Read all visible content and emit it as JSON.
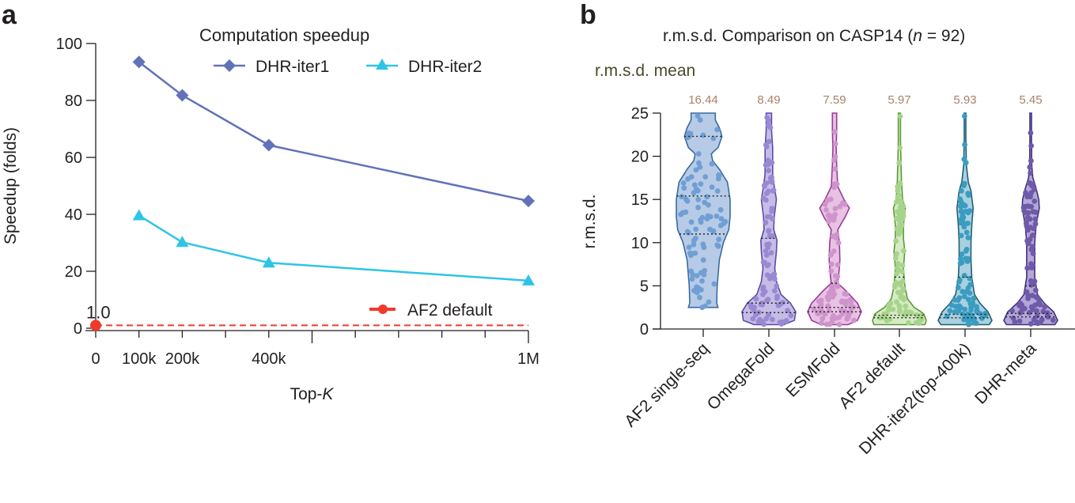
{
  "chart_data": [
    {
      "panel": "a",
      "type": "line",
      "title": "Computation speedup",
      "xlabel": "Top-K",
      "xlabel_parts": [
        "Top-",
        "K"
      ],
      "ylabel": "Speedup (folds)",
      "xlim": [
        0,
        1000000
      ],
      "ylim": [
        0,
        100
      ],
      "x_tick_values": [
        0,
        100000,
        200000,
        400000,
        1000000
      ],
      "x_tick_labels": [
        "0",
        "100k",
        "200k",
        "400k",
        "1M"
      ],
      "x_minor_ticks": [
        300000,
        500000,
        600000,
        700000,
        800000,
        900000
      ],
      "y_ticks": [
        0,
        20,
        40,
        60,
        80,
        100
      ],
      "y_tick_labels": [
        "0",
        "20",
        "40",
        "60",
        "80",
        "100"
      ],
      "grid": false,
      "legend_position": "top-right",
      "series": [
        {
          "name": "DHR-iter1",
          "color": "#6272b8",
          "marker": "diamond",
          "x": [
            100000,
            200000,
            400000,
            1000000
          ],
          "values": [
            93.5,
            81.8,
            64.3,
            44.7
          ]
        },
        {
          "name": "DHR-iter2",
          "color": "#2ec4e6",
          "marker": "triangle",
          "x": [
            100000,
            200000,
            400000,
            1000000
          ],
          "values": [
            39.6,
            30.2,
            23.0,
            16.7
          ]
        }
      ],
      "baseline": {
        "name": "AF2 default",
        "color": "#ef3b2c",
        "value": 1.0,
        "x": 0,
        "label": "1.0",
        "style": "dashed",
        "legend_position": "bottom-right"
      }
    },
    {
      "panel": "b",
      "type": "violin",
      "title": "r.m.s.d. Comparison on CASP14 (n = 92)",
      "title_parts": [
        "r.m.s.d. Comparison on CASP14 (",
        "n",
        " = 92)"
      ],
      "subtitle": "r.m.s.d. mean",
      "ylabel": "r.m.s.d.",
      "ylim": [
        0,
        25
      ],
      "y_ticks": [
        0,
        5,
        10,
        15,
        20,
        25
      ],
      "y_tick_labels": [
        "0",
        "5",
        "10",
        "15",
        "20",
        "25"
      ],
      "grid": false,
      "categories": [
        "AF2 single-seq",
        "OmegaFold",
        "ESMFold",
        "AF2 default",
        "DHR-iter2(top-400k)",
        "DHR-meta"
      ],
      "mean_labels": [
        "16.44",
        "8.49",
        "7.59",
        "5.97",
        "5.93",
        "5.45"
      ],
      "means": [
        16.44,
        8.49,
        7.59,
        5.97,
        5.93,
        5.45
      ],
      "mean_label_color": "#a8826a",
      "series": [
        {
          "name": "AF2 single-seq",
          "fill": "#b7cbe6",
          "stroke": "#3a6aa0",
          "dot": "#6f9fd4",
          "min": 2.5,
          "max": 25,
          "quartiles": [
            11.0,
            15.4,
            22.3
          ],
          "density": [
            [
              2.5,
              0.55
            ],
            [
              3,
              0.5
            ],
            [
              5,
              0.52
            ],
            [
              8,
              0.6
            ],
            [
              10,
              0.75
            ],
            [
              11.5,
              0.95
            ],
            [
              13,
              1.0
            ],
            [
              15,
              1.0
            ],
            [
              17,
              0.9
            ],
            [
              18.5,
              0.6
            ],
            [
              19.5,
              0.35
            ],
            [
              20.3,
              0.3
            ],
            [
              21,
              0.55
            ],
            [
              22.3,
              0.7
            ],
            [
              23.3,
              0.6
            ],
            [
              24.2,
              0.45
            ],
            [
              25,
              0.45
            ]
          ]
        },
        {
          "name": "OmegaFold",
          "fill": "#c5bde6",
          "stroke": "#5b4ba6",
          "dot": "#9a89d2",
          "min": 0.5,
          "max": 25,
          "quartiles": [
            1.9,
            3.0,
            10.5
          ],
          "density": [
            [
              0.5,
              0.55
            ],
            [
              1,
              0.95
            ],
            [
              2,
              1.0
            ],
            [
              3,
              0.8
            ],
            [
              4,
              0.45
            ],
            [
              5.5,
              0.28
            ],
            [
              7,
              0.22
            ],
            [
              9,
              0.28
            ],
            [
              10.3,
              0.3
            ],
            [
              11.5,
              0.18
            ],
            [
              13,
              0.2
            ],
            [
              15,
              0.28
            ],
            [
              16.5,
              0.2
            ],
            [
              18,
              0.14
            ],
            [
              21,
              0.14
            ],
            [
              23,
              0.1
            ],
            [
              25,
              0.1
            ]
          ]
        },
        {
          "name": "ESMFold",
          "fill": "#e8c2e2",
          "stroke": "#9a3a9a",
          "dot": "#cf94cc",
          "min": 0.5,
          "max": 25,
          "quartiles": [
            2.0,
            2.5,
            5.3
          ],
          "density": [
            [
              0.5,
              0.5
            ],
            [
              1,
              0.85
            ],
            [
              2,
              1.0
            ],
            [
              3,
              0.85
            ],
            [
              4.5,
              0.4
            ],
            [
              5.3,
              0.12
            ],
            [
              6,
              0.15
            ],
            [
              8,
              0.2
            ],
            [
              10,
              0.18
            ],
            [
              11.5,
              0.12
            ],
            [
              13,
              0.4
            ],
            [
              14,
              0.55
            ],
            [
              15,
              0.35
            ],
            [
              16.5,
              0.12
            ],
            [
              19,
              0.08
            ],
            [
              21,
              0.06
            ],
            [
              23,
              0.08
            ],
            [
              25,
              0.08
            ]
          ]
        },
        {
          "name": "AF2 default",
          "fill": "#d6ebc4",
          "stroke": "#5a9a3a",
          "dot": "#a7d48a",
          "min": 0.5,
          "max": 25,
          "quartiles": [
            1.3,
            1.6,
            6.0
          ],
          "density": [
            [
              0.5,
              0.95
            ],
            [
              1,
              1.0
            ],
            [
              1.8,
              0.9
            ],
            [
              2.5,
              0.55
            ],
            [
              3.5,
              0.3
            ],
            [
              5,
              0.2
            ],
            [
              7,
              0.15
            ],
            [
              9,
              0.2
            ],
            [
              10.5,
              0.15
            ],
            [
              12,
              0.15
            ],
            [
              14,
              0.22
            ],
            [
              15,
              0.12
            ],
            [
              17,
              0.08
            ],
            [
              19,
              0.06
            ],
            [
              22,
              0.04
            ],
            [
              25,
              0.04
            ]
          ]
        },
        {
          "name": "DHR-iter2(top-400k)",
          "fill": "#a8d0e0",
          "stroke": "#1f5f78",
          "dot": "#3a9cc0",
          "min": 0.5,
          "max": 25,
          "quartiles": [
            1.3,
            1.7,
            6.0
          ],
          "density": [
            [
              0.5,
              0.9
            ],
            [
              1,
              1.0
            ],
            [
              2,
              0.85
            ],
            [
              3,
              0.55
            ],
            [
              4,
              0.35
            ],
            [
              6,
              0.25
            ],
            [
              8,
              0.22
            ],
            [
              10,
              0.22
            ],
            [
              12,
              0.25
            ],
            [
              14,
              0.3
            ],
            [
              16,
              0.22
            ],
            [
              17,
              0.12
            ],
            [
              19,
              0.05
            ],
            [
              22,
              0.03
            ],
            [
              25,
              0.03
            ]
          ]
        },
        {
          "name": "DHR-meta",
          "fill": "#b3a6d8",
          "stroke": "#3f2f7e",
          "dot": "#6e5aa8",
          "min": 0.5,
          "max": 25,
          "quartiles": [
            1.4,
            1.8,
            5.0
          ],
          "density": [
            [
              0.5,
              0.9
            ],
            [
              1,
              1.0
            ],
            [
              2,
              0.85
            ],
            [
              3,
              0.5
            ],
            [
              4,
              0.25
            ],
            [
              6,
              0.15
            ],
            [
              8,
              0.15
            ],
            [
              10,
              0.15
            ],
            [
              12,
              0.2
            ],
            [
              14,
              0.32
            ],
            [
              15,
              0.3
            ],
            [
              16.3,
              0.2
            ],
            [
              17.5,
              0.08
            ],
            [
              19,
              0.04
            ],
            [
              22,
              0.03
            ],
            [
              25,
              0.03
            ]
          ]
        }
      ]
    }
  ],
  "panels": {
    "a_letter": "a",
    "b_letter": "b"
  }
}
